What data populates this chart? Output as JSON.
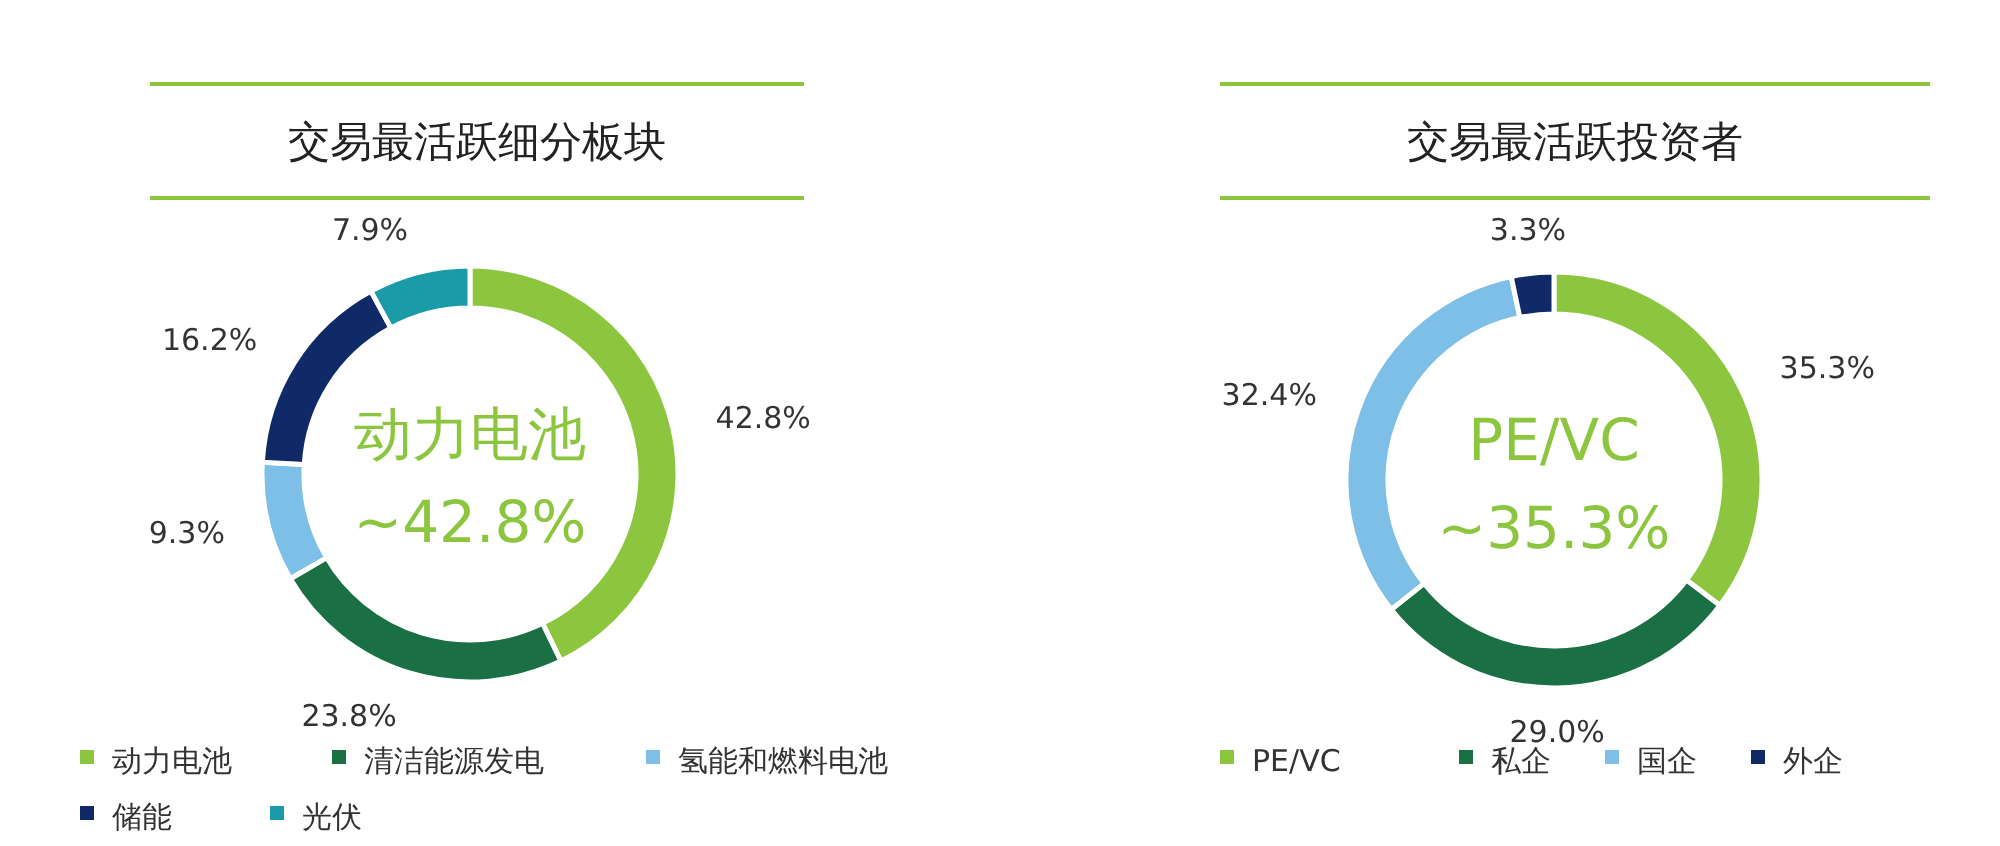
{
  "chart_data": [
    {
      "type": "donut",
      "title": "交易最活跃细分板块",
      "categories": [
        "动力电池",
        "清洁能源发电",
        "氢能和燃料电池",
        "储能",
        "光伏"
      ],
      "values": [
        42.8,
        23.8,
        9.3,
        16.2,
        7.9
      ],
      "colors": [
        "#8cc63f",
        "#1a6f44",
        "#7dbfe6",
        "#0f2a66",
        "#1b9aa8"
      ],
      "value_labels": [
        "42.8%",
        "23.8%",
        "9.3%",
        "16.2%",
        "7.9%"
      ],
      "annotations": [
        "动力电池",
        "~42.8%"
      ],
      "legend": "bottom"
    },
    {
      "type": "donut",
      "title": "交易最活跃投资者",
      "categories": [
        "PE/VC",
        "私企",
        "国企",
        "外企"
      ],
      "values": [
        35.3,
        29.0,
        32.4,
        3.3
      ],
      "colors": [
        "#8cc63f",
        "#1a6f44",
        "#7dbfe6",
        "#0f2a66"
      ],
      "value_labels": [
        "35.3%",
        "29.0%",
        "32.4%",
        "3.3%"
      ],
      "annotations": [
        "PE/VC",
        "~35.3%"
      ],
      "legend": "bottom"
    }
  ]
}
